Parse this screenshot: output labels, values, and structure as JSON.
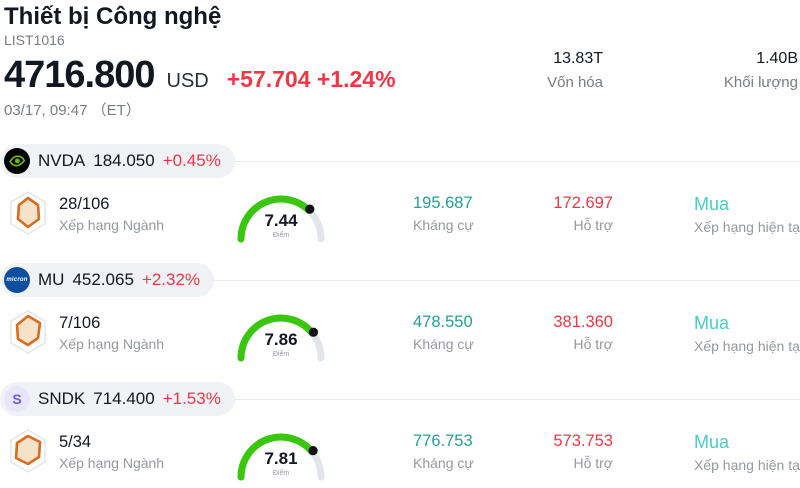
{
  "header": {
    "title": "Thiết bị Công nghệ",
    "list_id": "LIST1016",
    "price": "4716.800",
    "currency": "USD",
    "change": "+57.704 +1.24%",
    "datetime": "03/17, 09:47 （ET）",
    "stats": {
      "marketcap": {
        "value": "13.83T",
        "label": "Vốn hóa"
      },
      "volume": {
        "value": "1.40B",
        "label": "Khối lượng"
      }
    }
  },
  "colors": {
    "negative_red": "#f23645",
    "resistance_teal": "#22a095",
    "rating_teal": "#45cfc0",
    "gauge_green": "#38c70d",
    "gauge_track": "#e3e5ec",
    "text_dark": "#131722",
    "text_gray": "#787b86",
    "pill_bg": "#f1f2f5",
    "nvidia_green": "#76b900",
    "micron_blue": "#0d4e9e",
    "sndk_purple": "#6f5bf0"
  },
  "rows": [
    {
      "ticker": "NVDA",
      "price": "184.050",
      "change": "+0.45%",
      "rank": "28/106",
      "rank_label": "Xếp hạng Ngành",
      "score": 7.44,
      "score_label": "Điểm",
      "resistance": "195.687",
      "resistance_label": "Kháng cự",
      "support": "172.697",
      "support_label": "Hỗ trợ",
      "rating": "Mua",
      "rating_label": "Xếp hạng hiện tại",
      "logo_text": ""
    },
    {
      "ticker": "MU",
      "price": "452.065",
      "change": "+2.32%",
      "rank": "7/106",
      "rank_label": "Xếp hạng Ngành",
      "score": 7.86,
      "score_label": "Điểm",
      "resistance": "478.550",
      "resistance_label": "Kháng cự",
      "support": "381.360",
      "support_label": "Hỗ trợ",
      "rating": "Mua",
      "rating_label": "Xếp hạng hiện tại",
      "logo_text": "micron"
    },
    {
      "ticker": "SNDK",
      "price": "714.400",
      "change": "+1.53%",
      "rank": "5/34",
      "rank_label": "Xếp hạng Ngành",
      "score": 7.81,
      "score_label": "Điểm",
      "resistance": "776.753",
      "resistance_label": "Kháng cự",
      "support": "573.753",
      "support_label": "Hỗ trợ",
      "rating": "Mua",
      "rating_label": "Xếp hạng hiện tại",
      "logo_text": "S"
    }
  ]
}
